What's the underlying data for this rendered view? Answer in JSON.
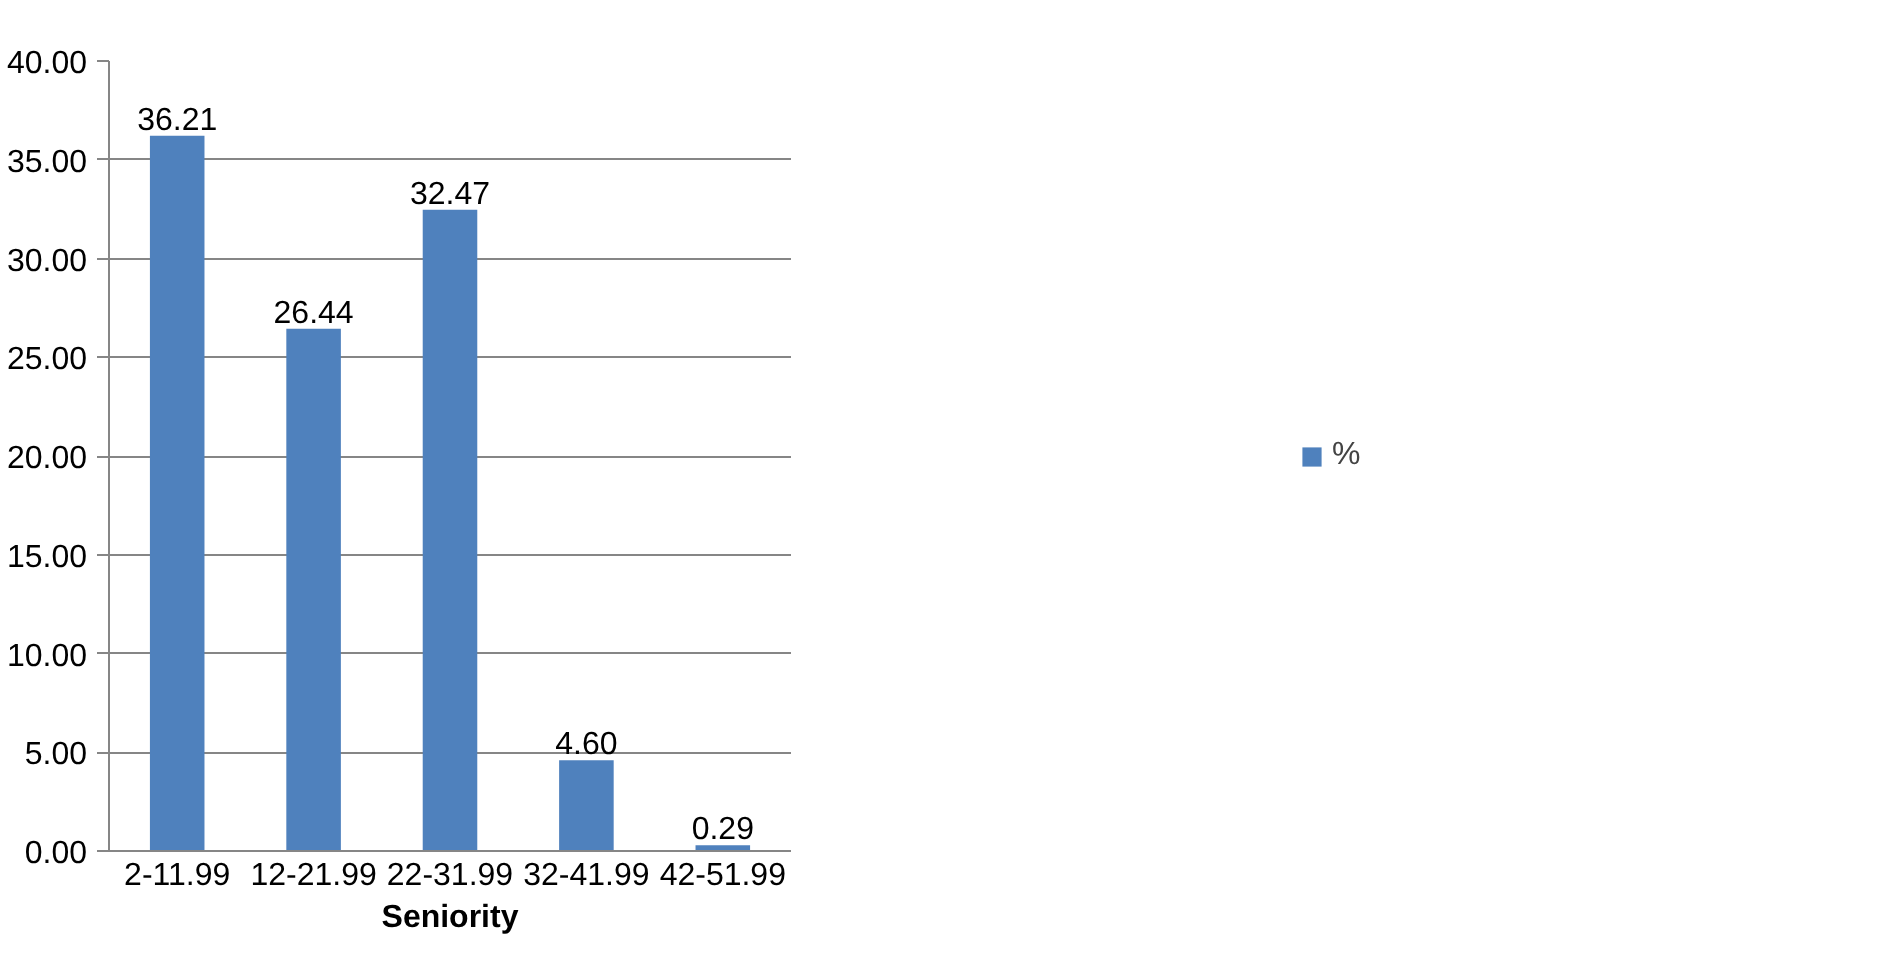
{
  "chart_data": {
    "type": "bar",
    "xlabel": "Seniority",
    "categories": [
      "2-11.99",
      "12-21.99",
      "22-31.99",
      "32-41.99",
      "42-51.99"
    ],
    "series": [
      {
        "name": "%",
        "color": "#4f81bd",
        "values": [
          36.21,
          26.44,
          32.47,
          4.6,
          0.29
        ],
        "value_labels": [
          "36.21",
          "26.44",
          "32.47",
          "4.60",
          "0.29"
        ]
      }
    ],
    "ylim": [
      0,
      40
    ],
    "yticks": [
      {
        "value": 0,
        "label": "0.00"
      },
      {
        "value": 5,
        "label": "5.00"
      },
      {
        "value": 10,
        "label": "10.00"
      },
      {
        "value": 15,
        "label": "15.00"
      },
      {
        "value": 20,
        "label": "20.00"
      },
      {
        "value": 25,
        "label": "25.00"
      },
      {
        "value": 30,
        "label": "30.00"
      },
      {
        "value": 35,
        "label": "35.00"
      },
      {
        "value": 40,
        "label": "40.00"
      }
    ],
    "grid": "y",
    "legend": "right"
  }
}
